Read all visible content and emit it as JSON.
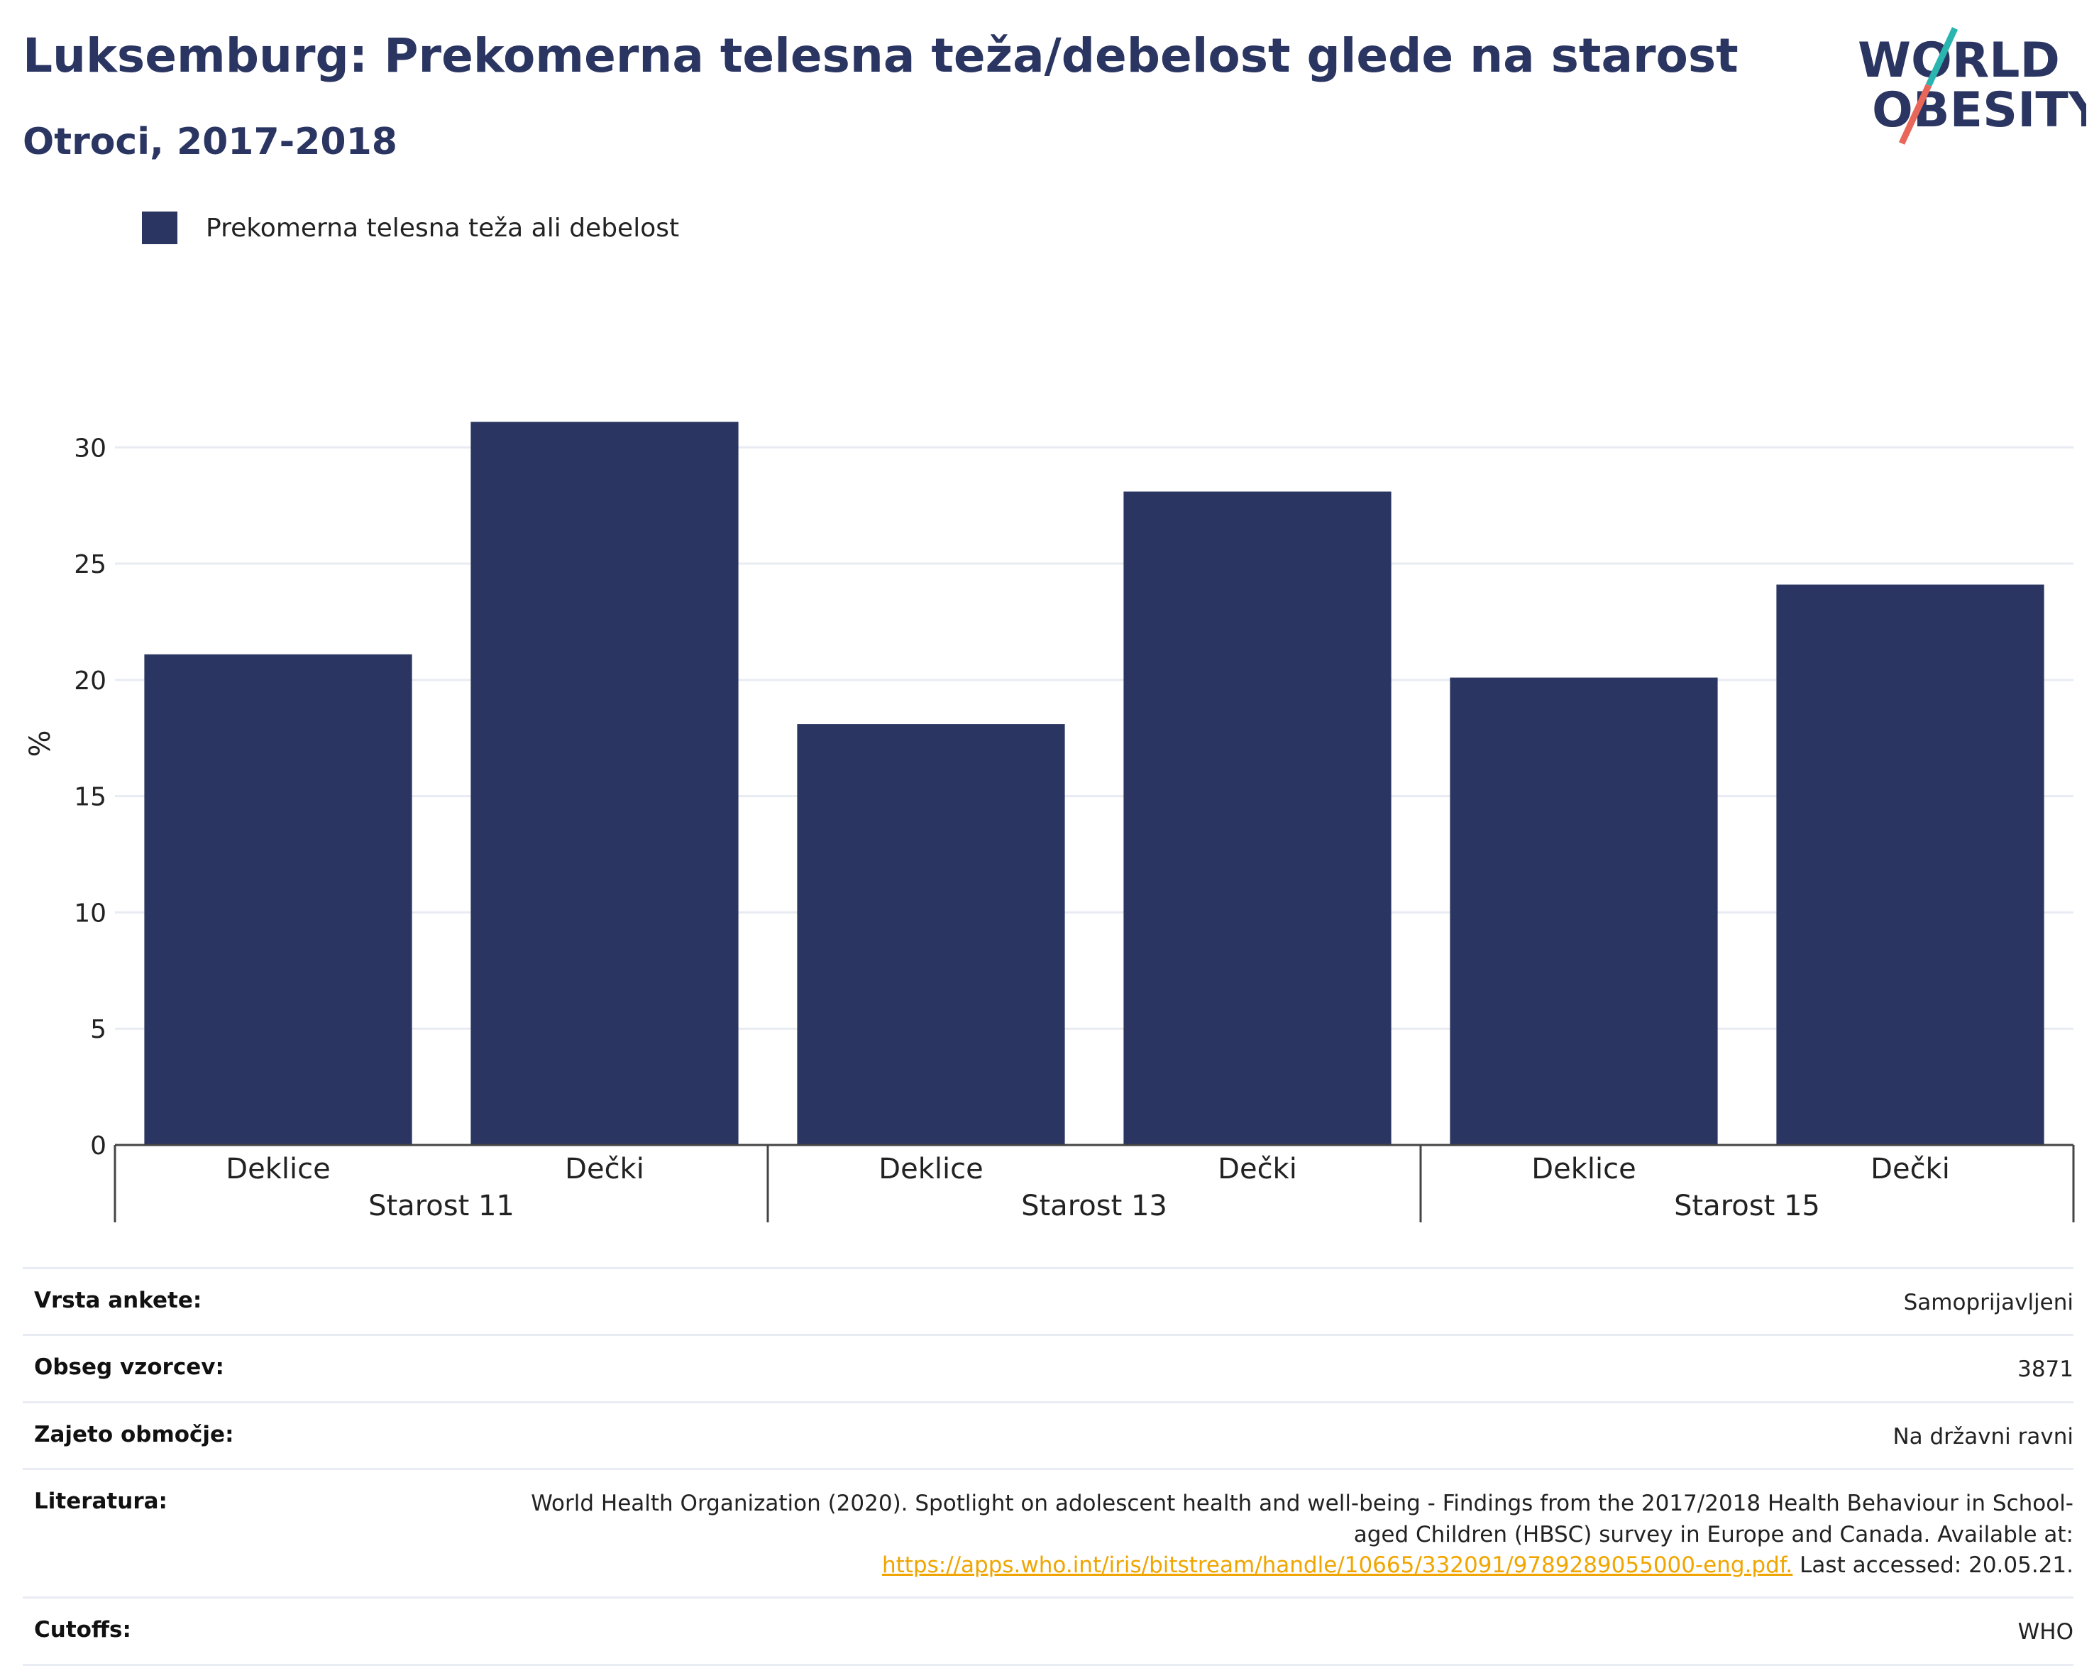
{
  "title": "Luksemburg: Prekomerna telesna teža/debelost glede na starost",
  "subtitle": "Otroci, 2017-2018",
  "logo": {
    "line1": "WORLD",
    "line2": "OBESITY"
  },
  "colors": {
    "bar": "#2a3561",
    "accent_teal": "#2bb5b0",
    "accent_red": "#e8675a",
    "link": "#f0a500"
  },
  "chart_data": {
    "type": "bar",
    "ylabel": "%",
    "ylim": [
      0,
      33
    ],
    "yticks": [
      0,
      5,
      10,
      15,
      20,
      25,
      30
    ],
    "grid": true,
    "legend_position": "top-left",
    "series": [
      {
        "name": "Prekomerna telesna teža ali debelost",
        "values": [
          21.1,
          31.1,
          18.1,
          28.1,
          20.1,
          24.1
        ]
      }
    ],
    "categories": [
      "Deklice",
      "Dečki",
      "Deklice",
      "Dečki",
      "Deklice",
      "Dečki"
    ],
    "groups": [
      "Starost 11",
      "Starost 13",
      "Starost 15"
    ]
  },
  "info": [
    {
      "key": "Vrsta ankete:",
      "value": "Samoprijavljeni"
    },
    {
      "key": "Obseg vzorcev:",
      "value": "3871"
    },
    {
      "key": "Zajeto območje:",
      "value": "Na državni ravni"
    },
    {
      "key": "Literatura:",
      "value_pre": "World Health Organization (2020). Spotlight on adolescent health and well-being - Findings from the 2017/2018 Health Behaviour in School-aged Children (HBSC) survey in Europe and Canada. Available at:",
      "link": "https://apps.who.int/iris/bitstream/handle/10665/332091/9789289055000-eng.pdf.",
      "value_post": "Last accessed: 20.05.21."
    },
    {
      "key": "Cutoffs:",
      "value": "WHO"
    }
  ]
}
